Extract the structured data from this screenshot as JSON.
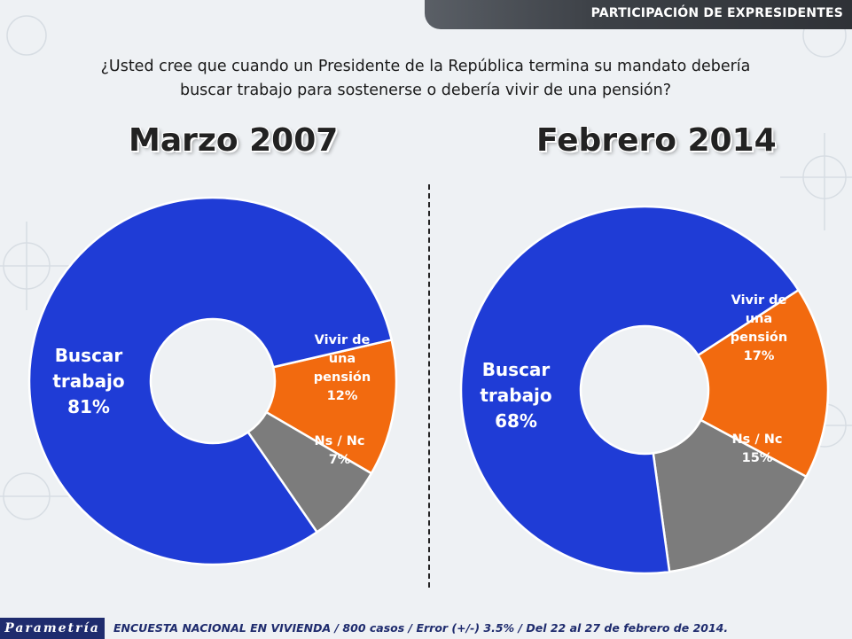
{
  "header": {
    "section_title": "PARTICIPACIÓN DE EXPRESIDENTES"
  },
  "question": {
    "line1": "¿Usted cree que cuando un Presidente de la República termina su mandato debería",
    "line2": "buscar trabajo para sostenerse o debería vivir de una pensión?"
  },
  "colors": {
    "buscar": "#1f3cd6",
    "pension": "#f26a0f",
    "nsnc": "#7c7c7c"
  },
  "chart_data": [
    {
      "type": "pie",
      "title": "Marzo 2007",
      "donut": true,
      "slices": [
        {
          "label_lines": [
            "Buscar",
            "trabajo"
          ],
          "value": 81,
          "value_label": "81%",
          "color": "#1f3cd6"
        },
        {
          "label_lines": [
            "Vivir de",
            "una",
            "pensión"
          ],
          "value": 12,
          "value_label": "12%",
          "color": "#f26a0f"
        },
        {
          "label_lines": [
            "Ns / Nc"
          ],
          "value": 7,
          "value_label": "7%",
          "color": "#7c7c7c"
        }
      ]
    },
    {
      "type": "pie",
      "title": "Febrero 2014",
      "donut": true,
      "slices": [
        {
          "label_lines": [
            "Buscar",
            "trabajo"
          ],
          "value": 68,
          "value_label": "68%",
          "color": "#1f3cd6"
        },
        {
          "label_lines": [
            "Vivir de",
            "una",
            "pensión"
          ],
          "value": 17,
          "value_label": "17%",
          "color": "#f26a0f"
        },
        {
          "label_lines": [
            "Ns / Nc"
          ],
          "value": 15,
          "value_label": "15%",
          "color": "#7c7c7c"
        }
      ]
    }
  ],
  "footer": {
    "logo": "Parametría",
    "note": "ENCUESTA NACIONAL EN VIVIENDA / 800 casos / Error (+/-)  3.5% / Del 22 al 27 de febrero de 2014."
  }
}
